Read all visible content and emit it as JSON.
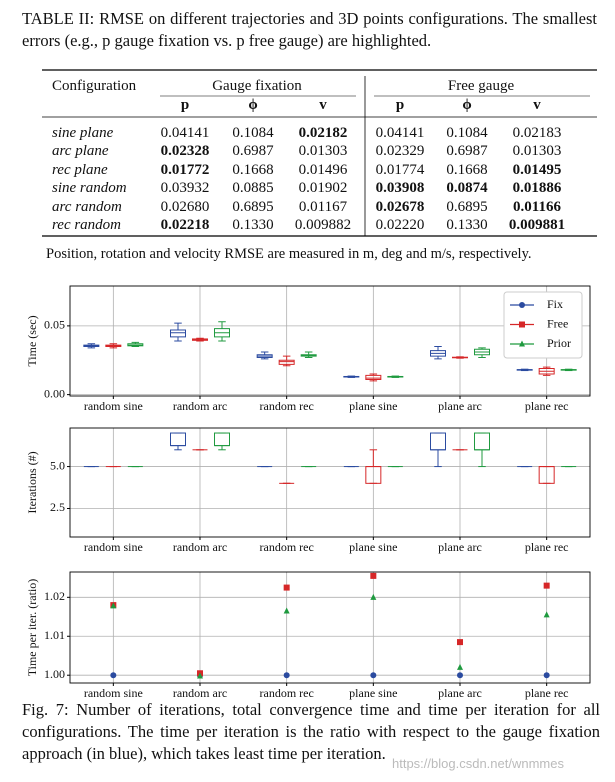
{
  "table_caption": "TABLE II: RMSE on different trajectories and 3D points configurations. The smallest errors (e.g., p gauge fixation vs. p free gauge) are highlighted.",
  "table": {
    "header": "Configuration",
    "groups": [
      "Gauge fixation",
      "Free gauge"
    ],
    "subheaders": [
      "p",
      "ϕ",
      "v",
      "p",
      "ϕ",
      "v"
    ],
    "rows": [
      {
        "name": "sine plane",
        "values": [
          "0.04141",
          "0.1084",
          "0.02182",
          "0.04141",
          "0.1084",
          "0.02183"
        ],
        "bold": [
          2
        ]
      },
      {
        "name": "arc plane",
        "values": [
          "0.02328",
          "0.6987",
          "0.01303",
          "0.02329",
          "0.6987",
          "0.01303"
        ],
        "bold": [
          0
        ]
      },
      {
        "name": "rec plane",
        "values": [
          "0.01772",
          "0.1668",
          "0.01496",
          "0.01774",
          "0.1668",
          "0.01495"
        ],
        "bold": [
          0,
          5
        ]
      },
      {
        "name": "sine random",
        "values": [
          "0.03932",
          "0.0885",
          "0.01902",
          "0.03908",
          "0.0874",
          "0.01886"
        ],
        "bold": [
          3,
          4,
          5
        ]
      },
      {
        "name": "arc random",
        "values": [
          "0.02680",
          "0.6895",
          "0.01167",
          "0.02678",
          "0.6895",
          "0.01166"
        ],
        "bold": [
          3,
          5
        ]
      },
      {
        "name": "rec random",
        "values": [
          "0.02218",
          "0.1330",
          "0.009882",
          "0.02220",
          "0.1330",
          "0.009881"
        ],
        "bold": [
          0,
          5
        ]
      }
    ]
  },
  "table_note": "Position, rotation and velocity RMSE are measured in m, deg and m/s, respectively.",
  "chart_data": [
    {
      "type": "box",
      "y_label": "Time (sec)",
      "legend": "upper right",
      "grid": true,
      "categories": [
        "random sine",
        "random arc",
        "random rec",
        "plane sine",
        "plane arc",
        "plane rec"
      ],
      "ylim": [
        -0.001,
        0.079
      ],
      "yticks": [
        {
          "value": 0,
          "label": "0.00"
        },
        {
          "value": 0.05,
          "label": "0.05"
        }
      ],
      "series": [
        {
          "name": "Fix",
          "color": "#2b4ba0",
          "marker": "circle",
          "min": [
            0.034,
            0.039,
            0.026,
            0.0125,
            0.026,
            0.0175
          ],
          "q1": [
            0.035,
            0.042,
            0.027,
            0.0128,
            0.028,
            0.0178
          ],
          "median": [
            0.0355,
            0.045,
            0.028,
            0.013,
            0.03,
            0.018
          ],
          "q3": [
            0.036,
            0.047,
            0.029,
            0.0132,
            0.032,
            0.0182
          ],
          "max": [
            0.037,
            0.052,
            0.031,
            0.0135,
            0.035,
            0.0185
          ]
        },
        {
          "name": "Free",
          "color": "#d62728",
          "marker": "square",
          "min": [
            0.034,
            0.039,
            0.021,
            0.01,
            0.0265,
            0.014
          ],
          "q1": [
            0.035,
            0.0395,
            0.022,
            0.011,
            0.0268,
            0.015
          ],
          "median": [
            0.0355,
            0.04,
            0.024,
            0.012,
            0.027,
            0.017
          ],
          "q3": [
            0.036,
            0.0405,
            0.025,
            0.014,
            0.0272,
            0.019
          ],
          "max": [
            0.037,
            0.041,
            0.028,
            0.015,
            0.0275,
            0.02
          ]
        },
        {
          "name": "Prior",
          "color": "#1f9a3f",
          "marker": "triangle",
          "min": [
            0.035,
            0.039,
            0.027,
            0.0125,
            0.027,
            0.0175
          ],
          "q1": [
            0.0355,
            0.042,
            0.028,
            0.0128,
            0.029,
            0.0178
          ],
          "median": [
            0.036,
            0.045,
            0.0285,
            0.013,
            0.031,
            0.018
          ],
          "q3": [
            0.037,
            0.048,
            0.029,
            0.0132,
            0.033,
            0.0182
          ],
          "max": [
            0.038,
            0.053,
            0.031,
            0.0135,
            0.034,
            0.0185
          ]
        }
      ]
    },
    {
      "type": "box",
      "y_label": "Iterations (#)",
      "grid": true,
      "categories": [
        "random sine",
        "random arc",
        "random rec",
        "plane sine",
        "plane arc",
        "plane rec"
      ],
      "ylim": [
        0.8,
        7.3
      ],
      "yticks": [
        2.5,
        {
          "value": 5,
          "label": "5.0"
        }
      ],
      "series": [
        {
          "color": "#2b4ba0",
          "min": [
            5,
            6,
            5,
            5,
            5,
            5
          ],
          "q1": [
            5,
            6.25,
            5,
            5,
            6,
            5
          ],
          "median": [
            5,
            6.25,
            5,
            5,
            6,
            5
          ],
          "q3": [
            5,
            7,
            5,
            5,
            7,
            5
          ],
          "max": [
            5,
            7,
            5,
            5,
            7,
            5
          ]
        },
        {
          "color": "#d62728",
          "min": [
            5,
            6,
            4,
            4,
            6,
            4
          ],
          "q1": [
            5,
            6,
            4,
            4,
            6,
            4
          ],
          "median": [
            5,
            6,
            4,
            5,
            6,
            5
          ],
          "q3": [
            5,
            6,
            4,
            5,
            6,
            5
          ],
          "max": [
            5,
            6,
            4,
            6,
            6,
            5
          ]
        },
        {
          "color": "#1f9a3f",
          "min": [
            5,
            6,
            5,
            5,
            5,
            5
          ],
          "q1": [
            5,
            6.25,
            5,
            5,
            6,
            5
          ],
          "median": [
            5,
            6.25,
            5,
            5,
            6,
            5
          ],
          "q3": [
            5,
            7,
            5,
            5,
            7,
            5
          ],
          "max": [
            5,
            7,
            5,
            5,
            7,
            5
          ]
        }
      ]
    },
    {
      "type": "scatter",
      "y_label": "Time per iter. (ratio)",
      "grid": true,
      "categories": [
        "random sine",
        "random arc",
        "random rec",
        "plane sine",
        "plane arc",
        "plane rec"
      ],
      "ylim": [
        0.998,
        1.0265
      ],
      "yticks": [
        {
          "value": 1,
          "label": "1.00"
        },
        1.01,
        1.02
      ],
      "series": [
        {
          "color": "#2b4ba0",
          "marker": "circle",
          "values": [
            1,
            1,
            1,
            1,
            1,
            1
          ]
        },
        {
          "color": "#d62728",
          "marker": "square",
          "values": [
            1.018,
            1.0005,
            1.0225,
            1.0255,
            1.0085,
            1.023
          ]
        },
        {
          "color": "#1f9a3f",
          "marker": "triangle",
          "values": [
            1.0178,
            0.9998,
            1.0165,
            1.02,
            1.002,
            1.0155
          ]
        }
      ]
    }
  ],
  "figure_caption": "Fig. 7:  Number of iterations, total convergence time and time per iteration for all configurations. The time per iteration is the ratio with respect to the gauge fixation approach (in blue), which takes least time per iteration.",
  "watermark": "https://blog.csdn.net/wnmmes"
}
